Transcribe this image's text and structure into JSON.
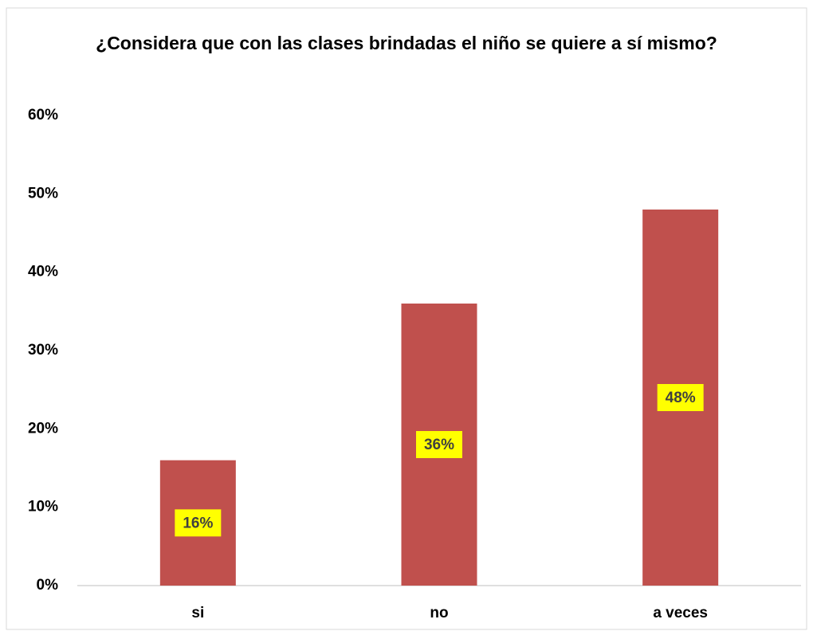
{
  "chart_data": {
    "type": "bar",
    "title": "¿Considera que con las clases brindadas el niño se quiere a sí mismo?",
    "categories": [
      "si",
      "no",
      "a veces"
    ],
    "values": [
      16,
      36,
      48
    ],
    "value_labels": [
      "16%",
      "36%",
      "48%"
    ],
    "color": "#c0504d",
    "label_background": "#ffff00",
    "ylim": [
      0,
      60
    ],
    "yticks": [
      {
        "value": 0,
        "label": "0%"
      },
      {
        "value": 10,
        "label": "10%"
      },
      {
        "value": 20,
        "label": "20%"
      },
      {
        "value": 30,
        "label": "30%"
      },
      {
        "value": 40,
        "label": "40%"
      },
      {
        "value": 50,
        "label": "50%"
      },
      {
        "value": 60,
        "label": "60%"
      }
    ],
    "grid": false
  }
}
